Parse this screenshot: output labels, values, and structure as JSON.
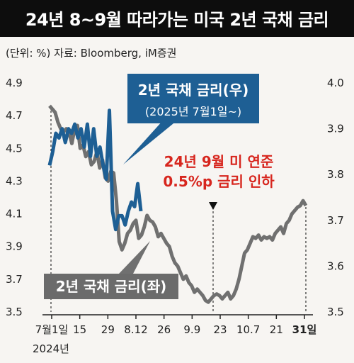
{
  "title": "24년 8~9월 따라가는 미국 2년 국채 금리",
  "unit_source": "(단위: %) 자료: Bloomberg, iM증권",
  "colors": {
    "right_series": "#1e5f94",
    "left_series": "#707070",
    "annotation": "#d7261e",
    "title_bg": "#0d0d0d"
  },
  "labels": {
    "right_line1": "2년 국채 금리(우)",
    "right_line2": "(2025년 7월1일~)",
    "left": "2년 국채 금리(좌)",
    "annotation_line1": "24년 9월 미 연준",
    "annotation_line2": "0.5%p 금리 인하"
  },
  "chart_data": {
    "type": "line",
    "x_ticks": [
      "7월1일",
      "15",
      "29",
      "8.12",
      "26",
      "9.9",
      "23",
      "10.7",
      "21",
      "31일"
    ],
    "x_year": "2024년",
    "left_axis": {
      "ticks": [
        "4.9",
        "4.7",
        "4.5",
        "4.3",
        "4.1",
        "3.9",
        "3.7",
        "3.5"
      ],
      "ylim": [
        3.5,
        4.9
      ]
    },
    "right_axis": {
      "ticks": [
        "4.0",
        "3.9",
        "3.8",
        "3.7",
        "3.6",
        "3.5"
      ],
      "ylim": [
        3.5,
        4.0
      ]
    },
    "series": [
      {
        "name": "2년 국채 금리(좌)",
        "axis": "left",
        "values": [
          4.76,
          4.74,
          4.72,
          4.66,
          4.62,
          4.6,
          4.62,
          4.6,
          4.53,
          4.62,
          4.64,
          4.5,
          4.52,
          4.45,
          4.48,
          4.4,
          4.42,
          4.48,
          4.38,
          4.43,
          4.32,
          4.3,
          4.36,
          4.35,
          4.18,
          3.93,
          3.88,
          3.92,
          3.98,
          4.0,
          4.04,
          4.06,
          3.95,
          3.97,
          4.02,
          4.09,
          4.06,
          4.05,
          4.02,
          3.96,
          3.98,
          3.95,
          3.92,
          3.9,
          3.84,
          3.8,
          3.78,
          3.74,
          3.7,
          3.72,
          3.68,
          3.66,
          3.62,
          3.64,
          3.62,
          3.6,
          3.57,
          3.56,
          3.58,
          3.6,
          3.61,
          3.6,
          3.58,
          3.6,
          3.62,
          3.58,
          3.6,
          3.64,
          3.7,
          3.78,
          3.86,
          3.88,
          3.92,
          3.96,
          3.95,
          3.97,
          3.94,
          3.96,
          3.95,
          3.96,
          3.94,
          3.98,
          4.0,
          4.02,
          3.98,
          4.04,
          4.06,
          4.1,
          4.12,
          4.14,
          4.15,
          4.18,
          4.15
        ]
      },
      {
        "name": "2년 국채 금리(우)",
        "axis": "right",
        "values": [
          3.82,
          3.85,
          3.89,
          3.88,
          3.9,
          3.87,
          3.9,
          3.89,
          3.91,
          3.88,
          3.9,
          3.86,
          3.91,
          3.84,
          3.9,
          3.84,
          3.86,
          3.82,
          3.79,
          3.94,
          3.72,
          3.68,
          3.71,
          3.71,
          3.69,
          3.72,
          3.74,
          3.73,
          3.78,
          3.72
        ]
      }
    ]
  }
}
